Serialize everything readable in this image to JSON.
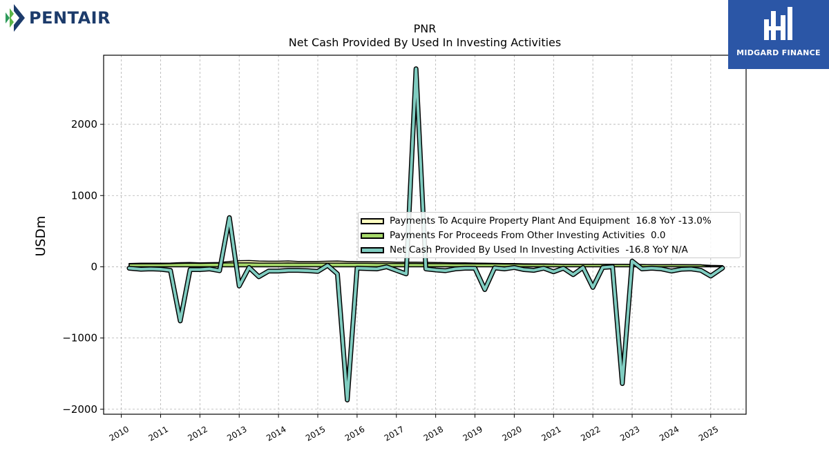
{
  "logo": {
    "company": "PENTAIR",
    "watermark": "MIDGARD FINANCE"
  },
  "colors": {
    "capex": "#ffffbf",
    "other": "#a6d96a",
    "net": "#80cdc1",
    "brand": "#1c3b6b",
    "badge": "#2b56a6"
  },
  "chart_data": {
    "type": "line",
    "title": "PNR",
    "subtitle": "Net Cash Provided By Used In Investing Activities",
    "ylabel": "USDm",
    "xlabel": "",
    "ylim": [
      -2070,
      2970
    ],
    "xlim": [
      2009.55,
      2025.9
    ],
    "yticks": [
      -2000,
      -1000,
      0,
      1000,
      2000
    ],
    "ytick_labels": [
      "−2000",
      "−1000",
      "0",
      "1000",
      "2000"
    ],
    "xticks": [
      2010,
      2011,
      2012,
      2013,
      2014,
      2015,
      2016,
      2017,
      2018,
      2019,
      2020,
      2021,
      2022,
      2023,
      2024,
      2025
    ],
    "xtick_labels": [
      "2010",
      "2011",
      "2012",
      "2013",
      "2014",
      "2015",
      "2016",
      "2017",
      "2018",
      "2019",
      "2020",
      "2021",
      "2022",
      "2023",
      "2024",
      "2025"
    ],
    "grid": true,
    "legend_position": "center-right",
    "series": [
      {
        "name": "Payments To Acquire Property Plant And Equipment",
        "legend_label": "Payments To Acquire Property Plant And Equipment  16.8 YoY -13.0%",
        "style": "area",
        "x": [
          2010.2,
          2010.5,
          2010.75,
          2011.0,
          2011.25,
          2011.5,
          2011.75,
          2012.0,
          2012.25,
          2012.5,
          2012.75,
          2013.0,
          2013.25,
          2013.5,
          2013.75,
          2014.0,
          2014.25,
          2014.5,
          2014.75,
          2015.0,
          2015.25,
          2015.5,
          2015.75,
          2016.0,
          2016.25,
          2016.5,
          2016.75,
          2017.0,
          2017.25,
          2017.5,
          2017.75,
          2018.0,
          2018.25,
          2018.5,
          2018.75,
          2019.0,
          2019.25,
          2019.5,
          2019.75,
          2020.0,
          2020.25,
          2020.5,
          2020.75,
          2021.0,
          2021.25,
          2021.5,
          2021.75,
          2022.0,
          2022.25,
          2022.5,
          2022.75,
          2023.0,
          2023.25,
          2023.5,
          2023.75,
          2024.0,
          2024.25,
          2024.5,
          2024.75,
          2025.0,
          2025.3
        ],
        "values": [
          45,
          50,
          50,
          50,
          52,
          58,
          60,
          55,
          58,
          60,
          75,
          85,
          88,
          80,
          78,
          78,
          82,
          75,
          75,
          75,
          78,
          80,
          75,
          72,
          72,
          70,
          70,
          65,
          65,
          65,
          62,
          60,
          58,
          55,
          55,
          52,
          50,
          48,
          45,
          45,
          42,
          40,
          40,
          38,
          36,
          35,
          35,
          35,
          35,
          34,
          33,
          33,
          32,
          30,
          28,
          30,
          30,
          28,
          27,
          20,
          16.8
        ]
      },
      {
        "name": "Payments For Proceeds From Other Investing Activities",
        "legend_label": "Payments For Proceeds From Other Investing Activities  0.0",
        "style": "area",
        "x": [
          2010.2,
          2010.5,
          2010.75,
          2011.0,
          2011.25,
          2011.5,
          2011.75,
          2012.0,
          2012.25,
          2012.5,
          2012.75,
          2013.0,
          2013.25,
          2013.5,
          2013.75,
          2014.0,
          2014.25,
          2014.5,
          2014.75,
          2015.0,
          2015.25,
          2015.5,
          2015.75,
          2016.0,
          2016.25,
          2016.5,
          2016.75,
          2017.0,
          2017.25,
          2017.5,
          2017.75,
          2018.0,
          2018.25,
          2018.5,
          2018.75,
          2019.0,
          2019.25,
          2019.5,
          2019.75,
          2020.0,
          2020.25,
          2020.5,
          2020.75,
          2021.0,
          2021.25,
          2021.5,
          2021.75,
          2022.0,
          2022.25,
          2022.5,
          2022.75,
          2023.0,
          2023.25,
          2023.5,
          2023.75,
          2024.0,
          2024.25,
          2024.5,
          2024.75,
          2025.0,
          2025.3
        ],
        "values": [
          40,
          42,
          42,
          42,
          44,
          48,
          50,
          48,
          50,
          52,
          55,
          55,
          55,
          52,
          52,
          52,
          54,
          52,
          52,
          52,
          52,
          52,
          50,
          50,
          50,
          48,
          48,
          46,
          46,
          46,
          45,
          44,
          44,
          42,
          42,
          40,
          40,
          40,
          38,
          38,
          36,
          36,
          36,
          36,
          35,
          35,
          35,
          34,
          34,
          33,
          33,
          32,
          32,
          30,
          30,
          30,
          30,
          28,
          28,
          5,
          0
        ]
      },
      {
        "name": "Net Cash Provided By Used In Investing Activities",
        "legend_label": "Net Cash Provided By Used In Investing Activities  -16.8 YoY N/A",
        "style": "line",
        "x": [
          2010.2,
          2010.5,
          2010.75,
          2011.0,
          2011.25,
          2011.5,
          2011.75,
          2012.0,
          2012.25,
          2012.5,
          2012.75,
          2013.0,
          2013.25,
          2013.5,
          2013.75,
          2014.0,
          2014.25,
          2014.5,
          2014.75,
          2015.0,
          2015.25,
          2015.5,
          2015.75,
          2016.0,
          2016.25,
          2016.5,
          2016.75,
          2017.0,
          2017.25,
          2017.5,
          2017.75,
          2018.0,
          2018.25,
          2018.5,
          2018.75,
          2019.0,
          2019.25,
          2019.5,
          2019.75,
          2020.0,
          2020.25,
          2020.5,
          2020.75,
          2021.0,
          2021.25,
          2021.5,
          2021.75,
          2022.0,
          2022.25,
          2022.5,
          2022.75,
          2023.0,
          2023.25,
          2023.5,
          2023.75,
          2024.0,
          2024.25,
          2024.5,
          2024.75,
          2025.0,
          2025.3
        ],
        "values": [
          -20,
          -35,
          -30,
          -35,
          -50,
          -760,
          -40,
          -40,
          -30,
          -55,
          690,
          -270,
          -10,
          -140,
          -60,
          -60,
          -50,
          -50,
          -55,
          -65,
          20,
          -100,
          -1870,
          -20,
          -25,
          -30,
          0,
          -50,
          -100,
          2780,
          -30,
          -45,
          -55,
          -30,
          -20,
          -20,
          -320,
          -15,
          -30,
          -10,
          -40,
          -50,
          -20,
          -70,
          -20,
          -110,
          -10,
          -290,
          -10,
          0,
          -1640,
          80,
          -30,
          -20,
          -30,
          -60,
          -35,
          -30,
          -50,
          -130,
          -17
        ]
      }
    ]
  }
}
